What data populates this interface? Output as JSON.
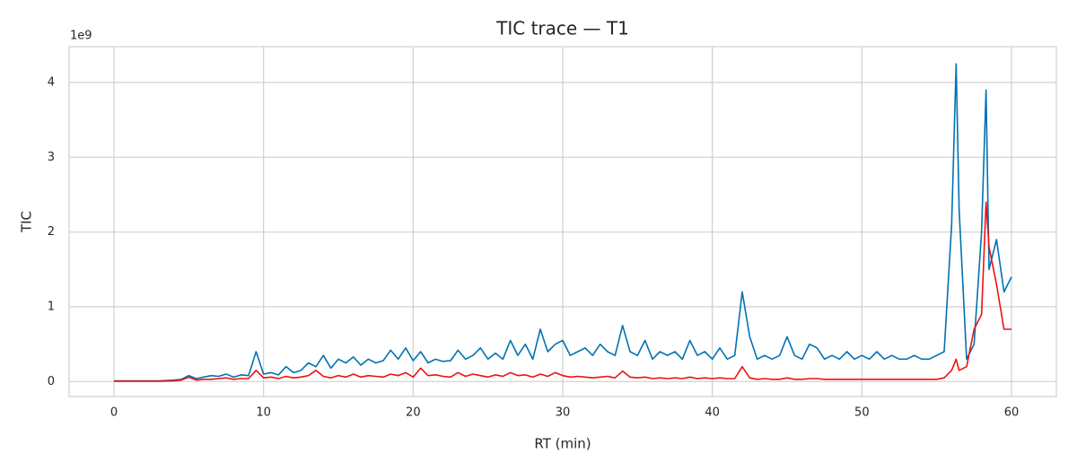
{
  "chart_data": {
    "type": "line",
    "title": "TIC trace — T1",
    "xlabel": "RT (min)",
    "ylabel": "TIC",
    "y_offset_label": "1e9",
    "x": [
      0,
      1,
      2,
      3,
      4,
      4.5,
      5,
      5.5,
      6,
      6.5,
      7,
      7.5,
      8,
      8.5,
      9,
      9.5,
      10,
      10.5,
      11,
      11.5,
      12,
      12.5,
      13,
      13.5,
      14,
      14.5,
      15,
      15.5,
      16,
      16.5,
      17,
      17.5,
      18,
      18.5,
      19,
      19.5,
      20,
      20.5,
      21,
      21.5,
      22,
      22.5,
      23,
      23.5,
      24,
      24.5,
      25,
      25.5,
      26,
      26.5,
      27,
      27.5,
      28,
      28.5,
      29,
      29.5,
      30,
      30.5,
      31,
      31.5,
      32,
      32.5,
      33,
      33.5,
      34,
      34.5,
      35,
      35.5,
      36,
      36.5,
      37,
      37.5,
      38,
      38.5,
      39,
      39.5,
      40,
      40.5,
      41,
      41.5,
      42,
      42.5,
      43,
      43.5,
      44,
      44.5,
      45,
      45.5,
      46,
      46.5,
      47,
      47.5,
      48,
      48.5,
      49,
      49.5,
      50,
      50.5,
      51,
      51.5,
      52,
      52.5,
      53,
      53.5,
      54,
      54.5,
      55,
      55.5,
      56,
      56.3,
      56.5,
      57,
      57.5,
      58,
      58.3,
      58.5,
      59,
      59.5,
      60
    ],
    "series": [
      {
        "color": "#0072b2",
        "values": [
          0.01,
          0.01,
          0.01,
          0.01,
          0.02,
          0.03,
          0.08,
          0.04,
          0.06,
          0.08,
          0.07,
          0.1,
          0.06,
          0.09,
          0.08,
          0.4,
          0.1,
          0.12,
          0.09,
          0.2,
          0.12,
          0.15,
          0.25,
          0.2,
          0.35,
          0.18,
          0.3,
          0.25,
          0.33,
          0.22,
          0.3,
          0.25,
          0.28,
          0.42,
          0.3,
          0.45,
          0.28,
          0.4,
          0.25,
          0.3,
          0.27,
          0.28,
          0.42,
          0.3,
          0.35,
          0.45,
          0.3,
          0.38,
          0.3,
          0.55,
          0.35,
          0.5,
          0.3,
          0.7,
          0.4,
          0.5,
          0.55,
          0.35,
          0.4,
          0.45,
          0.35,
          0.5,
          0.4,
          0.35,
          0.75,
          0.4,
          0.35,
          0.55,
          0.3,
          0.4,
          0.35,
          0.4,
          0.3,
          0.55,
          0.35,
          0.4,
          0.3,
          0.45,
          0.3,
          0.35,
          1.2,
          0.6,
          0.3,
          0.35,
          0.3,
          0.35,
          0.6,
          0.35,
          0.3,
          0.5,
          0.45,
          0.3,
          0.35,
          0.3,
          0.4,
          0.3,
          0.35,
          0.3,
          0.4,
          0.3,
          0.35,
          0.3,
          0.3,
          0.35,
          0.3,
          0.3,
          0.35,
          0.4,
          2.1,
          4.25,
          2.3,
          0.3,
          0.5,
          2.0,
          3.9,
          1.5,
          1.9,
          1.2,
          1.4
        ]
      },
      {
        "color": "#ee1111",
        "values": [
          0.005,
          0.005,
          0.005,
          0.005,
          0.01,
          0.02,
          0.06,
          0.02,
          0.03,
          0.03,
          0.04,
          0.05,
          0.03,
          0.04,
          0.04,
          0.15,
          0.05,
          0.06,
          0.04,
          0.07,
          0.05,
          0.06,
          0.08,
          0.15,
          0.07,
          0.05,
          0.08,
          0.06,
          0.1,
          0.06,
          0.08,
          0.07,
          0.06,
          0.1,
          0.08,
          0.12,
          0.06,
          0.18,
          0.08,
          0.09,
          0.07,
          0.06,
          0.12,
          0.07,
          0.1,
          0.08,
          0.06,
          0.09,
          0.07,
          0.12,
          0.08,
          0.09,
          0.06,
          0.1,
          0.07,
          0.12,
          0.08,
          0.06,
          0.07,
          0.06,
          0.05,
          0.06,
          0.07,
          0.05,
          0.14,
          0.06,
          0.05,
          0.06,
          0.04,
          0.05,
          0.04,
          0.05,
          0.04,
          0.06,
          0.04,
          0.05,
          0.04,
          0.05,
          0.04,
          0.04,
          0.2,
          0.05,
          0.03,
          0.04,
          0.03,
          0.03,
          0.05,
          0.03,
          0.03,
          0.04,
          0.04,
          0.03,
          0.03,
          0.03,
          0.03,
          0.03,
          0.03,
          0.03,
          0.03,
          0.03,
          0.03,
          0.03,
          0.03,
          0.03,
          0.03,
          0.03,
          0.03,
          0.05,
          0.15,
          0.3,
          0.15,
          0.2,
          0.7,
          0.9,
          2.4,
          1.8,
          1.3,
          0.7,
          0.7
        ]
      }
    ],
    "xlim": [
      -3,
      63
    ],
    "ylim": [
      -0.2,
      4.48
    ],
    "xticks": [
      0,
      10,
      20,
      30,
      40,
      50,
      60
    ],
    "yticks": [
      0,
      1,
      2,
      3,
      4
    ],
    "grid": true
  }
}
